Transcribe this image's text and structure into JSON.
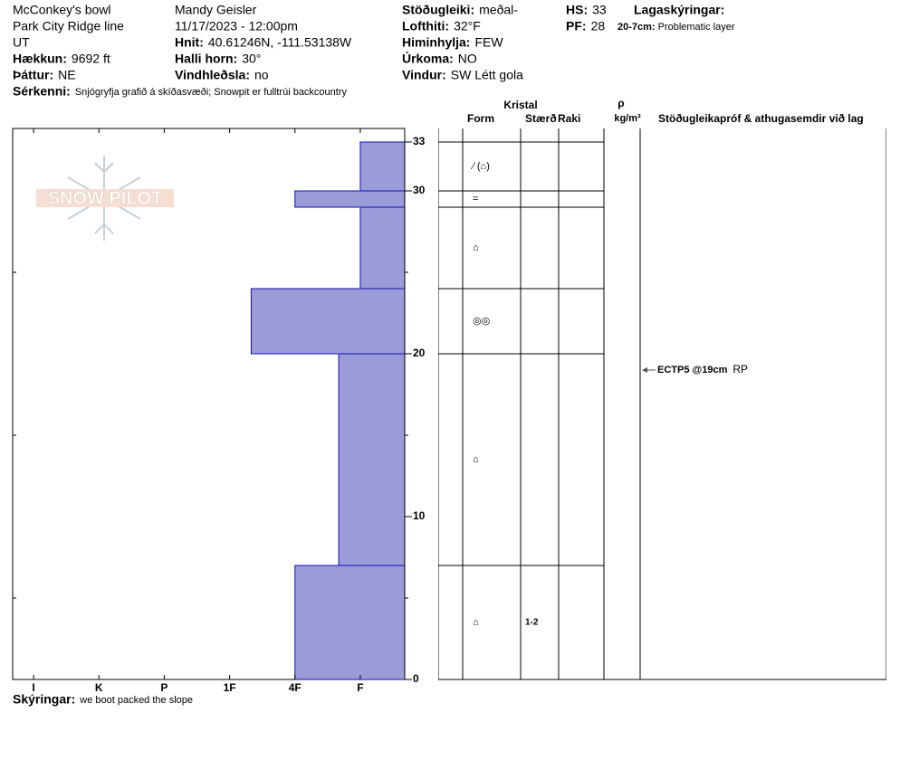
{
  "header": {
    "col1": [
      {
        "value": "McConkey's bowl"
      },
      {
        "value": "Park City Ridge line"
      },
      {
        "value": "UT"
      },
      {
        "label": "Hækkun:",
        "value": "9692 ft"
      },
      {
        "label": "Þáttur:",
        "value": "NE"
      }
    ],
    "col2": [
      {
        "value": "Mandy Geisler"
      },
      {
        "value": "11/17/2023 - 12:00pm"
      },
      {
        "label": "Hnit:",
        "value": "40.61246N, -111.53138W"
      },
      {
        "label": "Halli horn:",
        "value": "30°"
      },
      {
        "label": "Vindhleðsla:",
        "value": "no"
      }
    ],
    "col3": [
      {
        "label": "Stöðugleiki:",
        "value": "meðal-"
      },
      {
        "label": "Lofthiti:",
        "value": "32°F"
      },
      {
        "label": "Himinhylja:",
        "value": "FEW"
      },
      {
        "label": "Úrkoma:",
        "value": "NO"
      },
      {
        "label": "Vindur:",
        "value": "SW Létt gola"
      }
    ],
    "col4": [
      {
        "label": "HS:",
        "value": "33"
      },
      {
        "label": "PF:",
        "value": "28"
      }
    ],
    "notes_title": "Lagaskýringar:",
    "notes": [
      {
        "label": "20-7cm:",
        "value": "Problematic layer"
      }
    ],
    "features": {
      "label": "Sérkenni:",
      "value": "Snjógryfja grafið á skíðasvæði;  Snowpit er fulltrúi backcountry"
    },
    "comments": {
      "label": "Skýringar:",
      "value": "we boot packed the slope"
    },
    "logo": "SNOW PILOT"
  },
  "chart_data": {
    "type": "snow-profile",
    "color": "#9b9bd8",
    "ylim": [
      0,
      33
    ],
    "yticks": [
      0,
      10,
      20,
      30,
      33
    ],
    "yminorticks": [
      5,
      15,
      25
    ],
    "xlim": [
      6.32,
      0.32
    ],
    "xticks": [
      {
        "value": 6,
        "label": "I"
      },
      {
        "value": 5,
        "label": "K"
      },
      {
        "value": 4,
        "label": "P"
      },
      {
        "value": 3,
        "label": "1F"
      },
      {
        "value": 2,
        "label": "4F"
      },
      {
        "value": 1,
        "label": "F"
      }
    ],
    "table_headers": {
      "crystal": "Kristal",
      "form": "Form",
      "size": "Stærð",
      "moisture": "Raki",
      "rho": "ρ",
      "density_unit": "kg/m³",
      "tests": "Stöðugleikapróf & athugasemdir við lag"
    },
    "layers": [
      {
        "top": 33,
        "bottom": 30,
        "hardness": 1,
        "form": "⁄ (⌂)"
      },
      {
        "top": 30,
        "bottom": 29,
        "hardness": 2,
        "form": "="
      },
      {
        "top": 29,
        "bottom": 24,
        "hardness": 1,
        "form": "⌂"
      },
      {
        "top": 24,
        "bottom": 20,
        "hardness": 2.67,
        "form": "◎◎"
      },
      {
        "top": 20,
        "bottom": 7,
        "hardness": 1.33,
        "form": "⌂"
      },
      {
        "top": 7,
        "bottom": 0,
        "hardness": 2,
        "form": "⌂",
        "size": "1-2"
      }
    ],
    "tests": [
      {
        "depth": 19,
        "label": "ECTP5 @19cm",
        "note": "RP"
      }
    ]
  }
}
